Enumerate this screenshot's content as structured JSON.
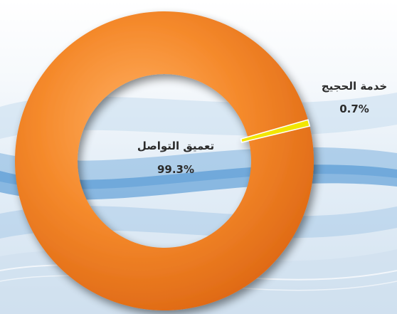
{
  "chart_data": {
    "type": "pie",
    "style": "donut",
    "slices": [
      {
        "label": "تعميق التواصل",
        "value": 99.3,
        "value_label": "99.3%",
        "color": "#f07a1c"
      },
      {
        "label": "خدمة الحجيج",
        "value": 0.7,
        "value_label": "0.7%",
        "color": "#f2e600"
      }
    ]
  }
}
